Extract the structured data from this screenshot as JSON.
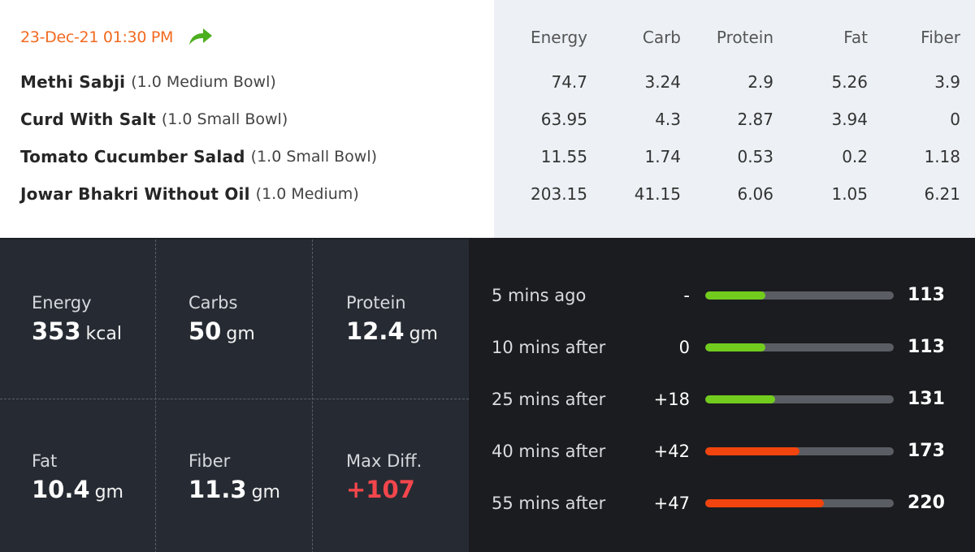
{
  "meal": {
    "timestamp": "23-Dec-21 01:30 PM",
    "share_icon": "share-arrow-icon",
    "columns": [
      "Energy",
      "Carb",
      "Protein",
      "Fat",
      "Fiber"
    ],
    "items": [
      {
        "name": "Methi Sabji",
        "qty": "(1.0 Medium Bowl)",
        "values": [
          "74.7",
          "3.24",
          "2.9",
          "5.26",
          "3.9"
        ]
      },
      {
        "name": "Curd With Salt",
        "qty": "(1.0 Small Bowl)",
        "values": [
          "63.95",
          "4.3",
          "2.87",
          "3.94",
          "0"
        ]
      },
      {
        "name": "Tomato Cucumber Salad",
        "qty": "(1.0 Small Bowl)",
        "values": [
          "11.55",
          "1.74",
          "0.53",
          "0.2",
          "1.18"
        ]
      },
      {
        "name": "Jowar Bhakri Without Oil",
        "qty": "(1.0 Medium)",
        "values": [
          "203.15",
          "41.15",
          "6.06",
          "1.05",
          "6.21"
        ]
      }
    ]
  },
  "summary": {
    "energy": {
      "label": "Energy",
      "value": "353",
      "unit": "kcal"
    },
    "carbs": {
      "label": "Carbs",
      "value": "50",
      "unit": "gm"
    },
    "protein": {
      "label": "Protein",
      "value": "12.4",
      "unit": "gm"
    },
    "fat": {
      "label": "Fat",
      "value": "10.4",
      "unit": "gm"
    },
    "fiber": {
      "label": "Fiber",
      "value": "11.3",
      "unit": "gm"
    },
    "max_diff": {
      "label": "Max Diff.",
      "value": "+107"
    }
  },
  "glucose": {
    "colors": {
      "green": "#72cc1e",
      "orange": "#f2440e",
      "track": "#5a5d63",
      "highlight": "#f2464c",
      "accent": "#f26a21"
    },
    "readings": [
      {
        "label": "5 mins ago",
        "diff": "-",
        "value": "113",
        "level": 0.32,
        "status": "green"
      },
      {
        "label": "10 mins after",
        "diff": "0",
        "value": "113",
        "level": 0.32,
        "status": "green"
      },
      {
        "label": "25 mins after",
        "diff": "+18",
        "value": "131",
        "level": 0.37,
        "status": "green"
      },
      {
        "label": "40 mins after",
        "diff": "+42",
        "value": "173",
        "level": 0.5,
        "status": "orange"
      },
      {
        "label": "55 mins after",
        "diff": "+47",
        "value": "220",
        "level": 0.63,
        "status": "orange"
      }
    ]
  }
}
